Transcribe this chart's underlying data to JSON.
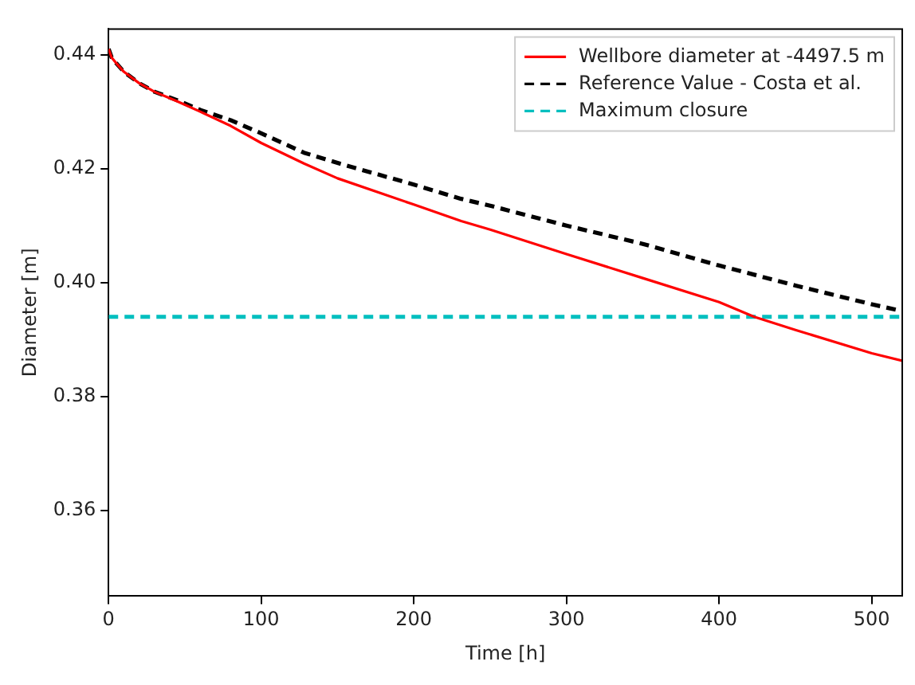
{
  "chart_data": {
    "type": "line",
    "xlabel": "Time [h]",
    "ylabel": "Diameter [m]",
    "xlim": [
      0,
      520
    ],
    "xticks": [
      0,
      100,
      200,
      300,
      400,
      500
    ],
    "ylim": [
      0.345,
      0.4445
    ],
    "yticks": [
      0.36,
      0.38,
      {
        "value": 0.4,
        "label": "0.40"
      },
      0.42,
      0.44
    ],
    "grid": false,
    "legend": "top right",
    "marker": "none",
    "series": [
      {
        "name": "Wellbore diameter at -4497.5 m",
        "color": "#ff0000",
        "line_style": "solid",
        "x": [
          0,
          2,
          5,
          10,
          20,
          30,
          45,
          60,
          80,
          100,
          128,
          150,
          200,
          231,
          250,
          300,
          350,
          400,
          423,
          450,
          500,
          520
        ],
        "values": [
          0.441,
          0.4395,
          0.4385,
          0.437,
          0.435,
          0.4335,
          0.4318,
          0.43,
          0.4275,
          0.4245,
          0.4209,
          0.4183,
          0.4137,
          0.4108,
          0.4093,
          0.405,
          0.4008,
          0.3966,
          0.394,
          0.3917,
          0.3876,
          0.3863
        ]
      },
      {
        "name": "Reference Value - Costa et al.",
        "color": "#000000",
        "line_style": "dashed",
        "x": [
          0,
          2,
          5,
          10,
          20,
          30,
          45,
          60,
          80,
          100,
          128,
          150,
          200,
          231,
          250,
          300,
          350,
          400,
          450,
          500,
          520
        ],
        "values": [
          0.441,
          0.4395,
          0.4385,
          0.437,
          0.435,
          0.4335,
          0.432,
          0.4303,
          0.4285,
          0.4262,
          0.4228,
          0.421,
          0.4172,
          0.4147,
          0.4135,
          0.41,
          0.4068,
          0.403,
          0.3995,
          0.3962,
          0.395
        ]
      },
      {
        "name": "Maximum closure",
        "color": "#00bfbf",
        "line_style": "dashed",
        "x": [
          0,
          520
        ],
        "values": [
          0.394,
          0.394
        ]
      }
    ]
  }
}
